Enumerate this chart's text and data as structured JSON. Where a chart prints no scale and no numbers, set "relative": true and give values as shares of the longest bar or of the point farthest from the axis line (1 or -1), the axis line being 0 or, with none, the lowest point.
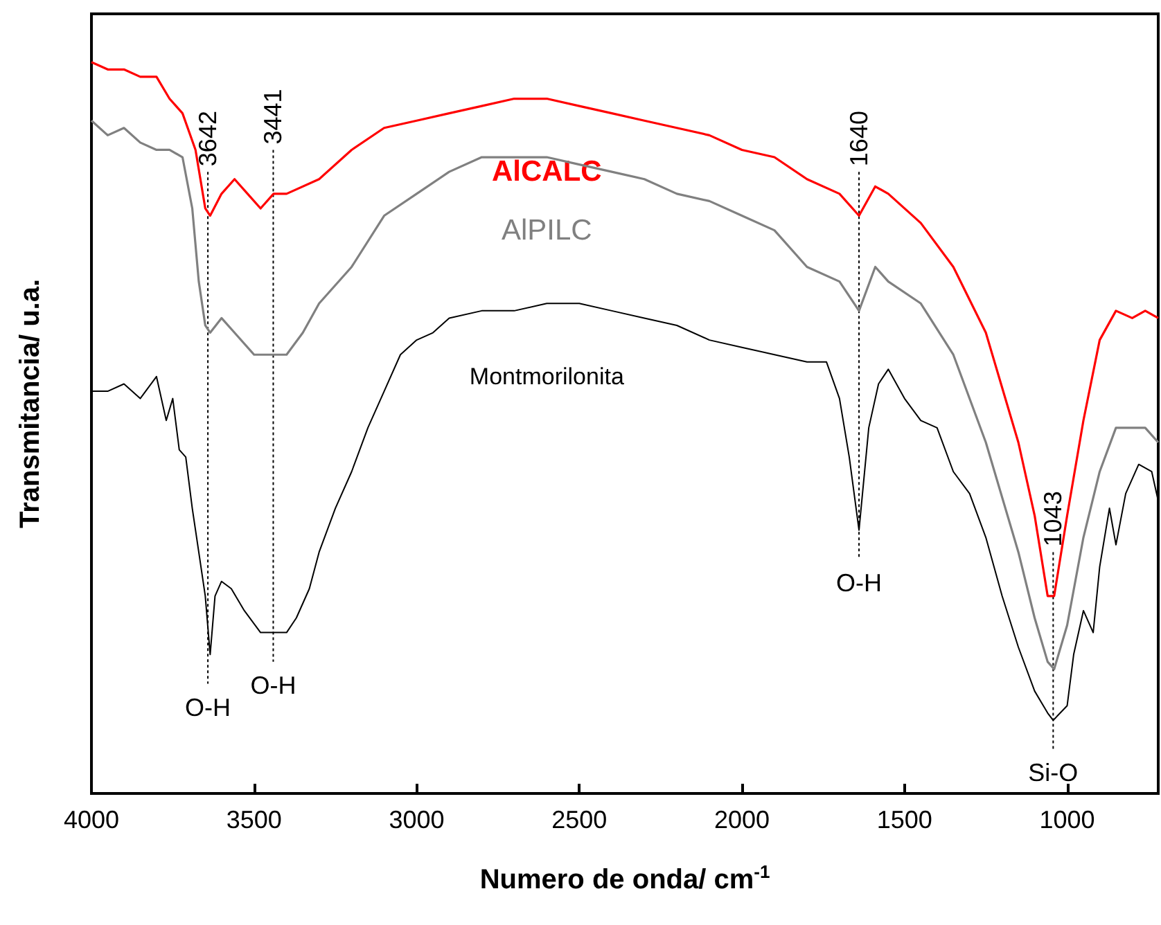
{
  "chart_data": {
    "type": "line",
    "relative": true,
    "xlabel": "Numero de onda/ cm$^{-1}$",
    "ylabel": "Transmitancia/ u.a.",
    "xlim": [
      4000,
      720
    ],
    "xticks": [
      4000,
      3500,
      3000,
      2500,
      2000,
      1500,
      1000
    ],
    "legend": false,
    "grid": false,
    "marker": "none",
    "line_style": "solid",
    "series": [
      {
        "name": "AlCALC",
        "color": "#ff0000",
        "x": [
          4000,
          3950,
          3900,
          3850,
          3800,
          3760,
          3720,
          3680,
          3650,
          3635,
          3600,
          3560,
          3520,
          3480,
          3440,
          3400,
          3300,
          3200,
          3100,
          3000,
          2900,
          2800,
          2700,
          2600,
          2500,
          2400,
          2300,
          2200,
          2100,
          2000,
          1900,
          1800,
          1700,
          1640,
          1590,
          1550,
          1450,
          1350,
          1250,
          1150,
          1100,
          1060,
          1040,
          1000,
          950,
          900,
          850,
          800,
          760,
          720
        ],
        "values": [
          1.0,
          0.99,
          0.99,
          0.98,
          0.98,
          0.95,
          0.93,
          0.88,
          0.8,
          0.79,
          0.82,
          0.84,
          0.82,
          0.8,
          0.82,
          0.82,
          0.84,
          0.88,
          0.91,
          0.92,
          0.93,
          0.94,
          0.95,
          0.95,
          0.94,
          0.93,
          0.92,
          0.91,
          0.9,
          0.88,
          0.87,
          0.84,
          0.82,
          0.79,
          0.83,
          0.82,
          0.78,
          0.72,
          0.63,
          0.48,
          0.38,
          0.27,
          0.27,
          0.38,
          0.51,
          0.62,
          0.66,
          0.65,
          0.66,
          0.65
        ]
      },
      {
        "name": "AlPILC",
        "color": "#808080",
        "x": [
          4000,
          3950,
          3900,
          3850,
          3800,
          3760,
          3720,
          3690,
          3670,
          3650,
          3635,
          3600,
          3560,
          3500,
          3450,
          3400,
          3350,
          3300,
          3200,
          3100,
          3000,
          2900,
          2800,
          2700,
          2600,
          2500,
          2400,
          2300,
          2200,
          2100,
          2000,
          1900,
          1800,
          1700,
          1640,
          1590,
          1550,
          1450,
          1350,
          1250,
          1150,
          1100,
          1060,
          1040,
          1000,
          950,
          900,
          850,
          800,
          760,
          720
        ],
        "values": [
          0.92,
          0.9,
          0.91,
          0.89,
          0.88,
          0.88,
          0.87,
          0.8,
          0.7,
          0.64,
          0.63,
          0.65,
          0.63,
          0.6,
          0.6,
          0.6,
          0.63,
          0.67,
          0.72,
          0.79,
          0.82,
          0.85,
          0.87,
          0.87,
          0.87,
          0.86,
          0.85,
          0.84,
          0.82,
          0.81,
          0.79,
          0.77,
          0.72,
          0.7,
          0.66,
          0.72,
          0.7,
          0.67,
          0.6,
          0.48,
          0.33,
          0.24,
          0.18,
          0.17,
          0.23,
          0.35,
          0.44,
          0.5,
          0.5,
          0.5,
          0.48
        ]
      },
      {
        "name": "Montmorilonita",
        "color": "#000000",
        "x": [
          4000,
          3950,
          3900,
          3850,
          3800,
          3770,
          3750,
          3730,
          3710,
          3690,
          3670,
          3650,
          3635,
          3620,
          3600,
          3570,
          3530,
          3480,
          3440,
          3400,
          3370,
          3330,
          3300,
          3250,
          3200,
          3150,
          3100,
          3050,
          3000,
          2950,
          2900,
          2800,
          2700,
          2600,
          2500,
          2400,
          2300,
          2200,
          2100,
          2000,
          1900,
          1800,
          1740,
          1700,
          1670,
          1640,
          1610,
          1580,
          1550,
          1500,
          1450,
          1400,
          1350,
          1300,
          1250,
          1200,
          1150,
          1100,
          1060,
          1043,
          1000,
          980,
          950,
          920,
          900,
          870,
          850,
          820,
          780,
          740,
          720
        ],
        "values": [
          0.55,
          0.55,
          0.56,
          0.54,
          0.57,
          0.51,
          0.54,
          0.47,
          0.46,
          0.39,
          0.33,
          0.27,
          0.19,
          0.27,
          0.29,
          0.28,
          0.25,
          0.22,
          0.22,
          0.22,
          0.24,
          0.28,
          0.33,
          0.39,
          0.44,
          0.5,
          0.55,
          0.6,
          0.62,
          0.63,
          0.65,
          0.66,
          0.66,
          0.67,
          0.67,
          0.66,
          0.65,
          0.64,
          0.62,
          0.61,
          0.6,
          0.59,
          0.59,
          0.54,
          0.46,
          0.36,
          0.5,
          0.56,
          0.58,
          0.54,
          0.51,
          0.5,
          0.44,
          0.41,
          0.35,
          0.27,
          0.2,
          0.14,
          0.11,
          0.1,
          0.12,
          0.19,
          0.25,
          0.22,
          0.31,
          0.39,
          0.34,
          0.41,
          0.45,
          0.44,
          0.4
        ]
      }
    ],
    "ref_lines": [
      {
        "axis": "x",
        "value": 3642,
        "label": "3642",
        "line_style": "dotted"
      },
      {
        "axis": "x",
        "value": 3441,
        "label": "3441",
        "line_style": "dotted"
      },
      {
        "axis": "x",
        "value": 1640,
        "label": "1640",
        "line_style": "dotted"
      },
      {
        "axis": "x",
        "value": 1043,
        "label": "1043",
        "line_style": "dotted"
      }
    ],
    "annotations": [
      "O-H",
      "O-H",
      "O-H",
      "Si-O"
    ]
  }
}
